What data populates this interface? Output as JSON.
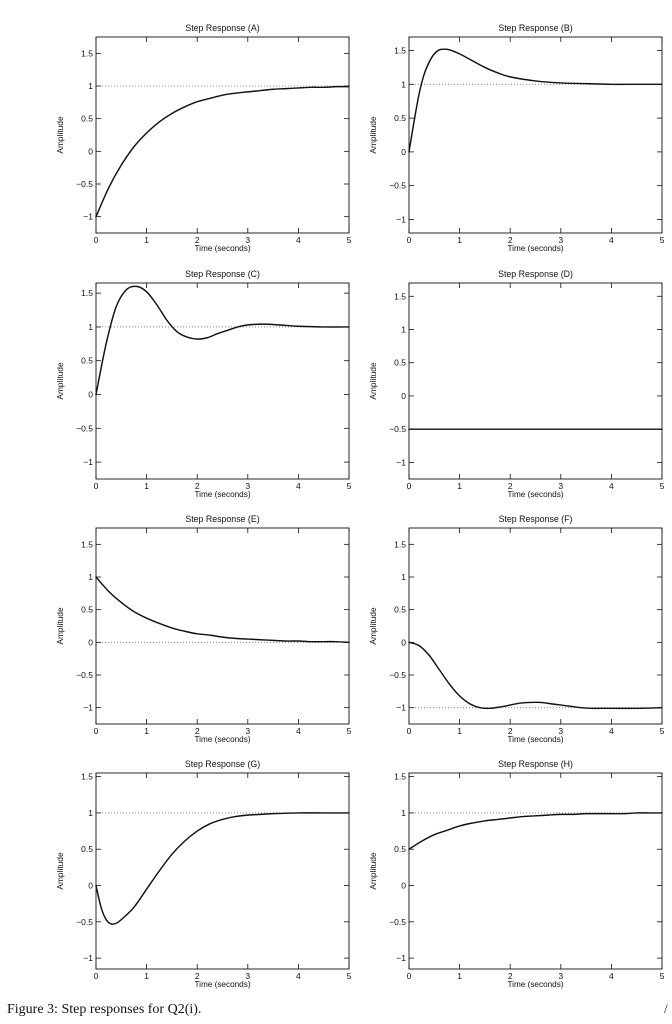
{
  "caption": "Figure 3: Step responses for Q2(i).",
  "edge_mark": "/",
  "chart_data": [
    {
      "type": "line",
      "title": "Step Response (A)",
      "xlabel": "Time (seconds)",
      "ylabel": "Amplitude",
      "xlim": [
        0,
        5
      ],
      "ylim": [
        -1.25,
        1.75
      ],
      "xticks": [
        0,
        1,
        2,
        3,
        4,
        5
      ],
      "xtick_labels": [
        "0",
        "1",
        "2",
        "3",
        "4",
        "5"
      ],
      "yticks": [
        -1,
        -0.5,
        0,
        0.5,
        1,
        1.5
      ],
      "ytick_labels": [
        "−1",
        "−0.5",
        "0",
        "0.5",
        "1",
        "1.5"
      ],
      "reference_line": 1,
      "series": [
        {
          "x": [
            0,
            0.25,
            0.5,
            0.75,
            1,
            1.25,
            1.5,
            1.75,
            2,
            2.25,
            2.5,
            2.75,
            3,
            3.25,
            3.5,
            3.75,
            4,
            4.25,
            4.5,
            4.75,
            5
          ],
          "y": [
            -1,
            -0.56,
            -0.21,
            0.07,
            0.28,
            0.45,
            0.58,
            0.68,
            0.76,
            0.81,
            0.86,
            0.89,
            0.91,
            0.93,
            0.95,
            0.96,
            0.97,
            0.98,
            0.98,
            0.99,
            0.99
          ]
        }
      ]
    },
    {
      "type": "line",
      "title": "Step Response (B)",
      "xlabel": "Time (seconds)",
      "ylabel": "Amplitude",
      "xlim": [
        0,
        5
      ],
      "ylim": [
        -1.2,
        1.7
      ],
      "xticks": [
        0,
        1,
        2,
        3,
        4,
        5
      ],
      "xtick_labels": [
        "0",
        "1",
        "2",
        "3",
        "4",
        "5"
      ],
      "yticks": [
        -1,
        -0.5,
        0,
        0.5,
        1,
        1.5
      ],
      "ytick_labels": [
        "−1",
        "−0.5",
        "0",
        "0.5",
        "1",
        "1.5"
      ],
      "reference_line": 1,
      "series": [
        {
          "x": [
            0,
            0.1,
            0.2,
            0.3,
            0.4,
            0.5,
            0.6,
            0.7,
            0.8,
            1,
            1.25,
            1.5,
            1.75,
            2,
            2.5,
            3,
            3.5,
            4,
            4.5,
            5
          ],
          "y": [
            0,
            0.45,
            0.86,
            1.15,
            1.33,
            1.45,
            1.51,
            1.52,
            1.51,
            1.45,
            1.35,
            1.25,
            1.17,
            1.11,
            1.05,
            1.02,
            1.01,
            1,
            1,
            1
          ]
        }
      ]
    },
    {
      "type": "line",
      "title": "Step Response (C)",
      "xlabel": "Time (seconds)",
      "ylabel": "Amplitude",
      "xlim": [
        0,
        5
      ],
      "ylim": [
        -1.25,
        1.65
      ],
      "xticks": [
        0,
        1,
        2,
        3,
        4,
        5
      ],
      "xtick_labels": [
        "0",
        "1",
        "2",
        "3",
        "4",
        "5"
      ],
      "yticks": [
        -1,
        -0.5,
        0,
        0.5,
        1,
        1.5
      ],
      "ytick_labels": [
        "−1",
        "−0.5",
        "0",
        "0.5",
        "1",
        "1.5"
      ],
      "reference_line": 1,
      "series": [
        {
          "x": [
            0,
            0.2,
            0.4,
            0.6,
            0.8,
            1,
            1.2,
            1.4,
            1.6,
            1.8,
            2,
            2.2,
            2.4,
            2.6,
            2.8,
            3,
            3.2,
            3.4,
            3.6,
            3.8,
            4,
            4.5,
            5
          ],
          "y": [
            0,
            0.75,
            1.3,
            1.55,
            1.6,
            1.52,
            1.33,
            1.1,
            0.93,
            0.85,
            0.82,
            0.84,
            0.9,
            0.95,
            1,
            1.03,
            1.04,
            1.04,
            1.03,
            1.02,
            1.01,
            1,
            1
          ]
        }
      ]
    },
    {
      "type": "line",
      "title": "Step Response (D)",
      "xlabel": "Time (seconds)",
      "ylabel": "Amplitude",
      "xlim": [
        0,
        5
      ],
      "ylim": [
        -1.25,
        1.7
      ],
      "xticks": [
        0,
        1,
        2,
        3,
        4,
        5
      ],
      "xtick_labels": [
        "0",
        "1",
        "2",
        "3",
        "4",
        "5"
      ],
      "yticks": [
        -1,
        -0.5,
        0,
        0.5,
        1,
        1.5
      ],
      "ytick_labels": [
        "−1",
        "−0.5",
        "0",
        "0.5",
        "1",
        "1.5"
      ],
      "series": [
        {
          "x": [
            0,
            5
          ],
          "y": [
            -0.5,
            -0.5
          ]
        }
      ]
    },
    {
      "type": "line",
      "title": "Step Response (E)",
      "xlabel": "Time (seconds)",
      "ylabel": "Amplitude",
      "xlim": [
        0,
        5
      ],
      "ylim": [
        -1.25,
        1.75
      ],
      "xticks": [
        0,
        1,
        2,
        3,
        4,
        5
      ],
      "xtick_labels": [
        "0",
        "1",
        "2",
        "3",
        "4",
        "5"
      ],
      "yticks": [
        -1,
        -0.5,
        0,
        0.5,
        1,
        1.5
      ],
      "ytick_labels": [
        "−1",
        "−0.5",
        "0",
        "0.5",
        "1",
        "1.5"
      ],
      "reference_line": 0,
      "series": [
        {
          "x": [
            0,
            0.25,
            0.5,
            0.75,
            1,
            1.25,
            1.5,
            1.75,
            2,
            2.25,
            2.5,
            2.75,
            3,
            3.25,
            3.5,
            3.75,
            4,
            4.25,
            4.5,
            4.75,
            5
          ],
          "y": [
            1,
            0.78,
            0.61,
            0.47,
            0.37,
            0.29,
            0.22,
            0.17,
            0.13,
            0.11,
            0.08,
            0.06,
            0.05,
            0.04,
            0.03,
            0.02,
            0.02,
            0.01,
            0.01,
            0.01,
            0
          ]
        }
      ]
    },
    {
      "type": "line",
      "title": "Step Response (F)",
      "xlabel": "Time (seconds)",
      "ylabel": "Amplitude",
      "xlim": [
        0,
        5
      ],
      "ylim": [
        -1.25,
        1.75
      ],
      "xticks": [
        0,
        1,
        2,
        3,
        4,
        5
      ],
      "xtick_labels": [
        "0",
        "1",
        "2",
        "3",
        "4",
        "5"
      ],
      "yticks": [
        -1,
        -0.5,
        0,
        0.5,
        1,
        1.5
      ],
      "ytick_labels": [
        "−1",
        "−0.5",
        "0",
        "0.5",
        "1",
        "1.5"
      ],
      "reference_line": -1,
      "series": [
        {
          "x": [
            0,
            0.2,
            0.4,
            0.6,
            0.8,
            1,
            1.2,
            1.4,
            1.6,
            1.8,
            2,
            2.2,
            2.4,
            2.6,
            2.8,
            3,
            3.2,
            3.4,
            3.6,
            3.8,
            4,
            4.5,
            5
          ],
          "y": [
            0,
            -0.05,
            -0.2,
            -0.42,
            -0.64,
            -0.82,
            -0.94,
            -1,
            -1.01,
            -0.99,
            -0.96,
            -0.93,
            -0.92,
            -0.92,
            -0.94,
            -0.96,
            -0.98,
            -1,
            -1.01,
            -1.01,
            -1.01,
            -1.01,
            -1
          ]
        }
      ]
    },
    {
      "type": "line",
      "title": "Step Response (G)",
      "xlabel": "Time (seconds)",
      "ylabel": "Amplitude",
      "xlim": [
        0,
        5
      ],
      "ylim": [
        -1.15,
        1.55
      ],
      "xticks": [
        0,
        1,
        2,
        3,
        4,
        5
      ],
      "xtick_labels": [
        "0",
        "1",
        "2",
        "3",
        "4",
        "5"
      ],
      "yticks": [
        -1,
        -0.5,
        0,
        0.5,
        1,
        1.5
      ],
      "ytick_labels": [
        "−1",
        "−0.5",
        "0",
        "0.5",
        "1",
        "1.5"
      ],
      "reference_line": 1,
      "series": [
        {
          "x": [
            0,
            0.1,
            0.2,
            0.3,
            0.4,
            0.5,
            0.75,
            1,
            1.25,
            1.5,
            1.75,
            2,
            2.25,
            2.5,
            2.75,
            3,
            3.25,
            3.5,
            4,
            4.5,
            5
          ],
          "y": [
            0,
            -0.3,
            -0.47,
            -0.53,
            -0.52,
            -0.47,
            -0.3,
            -0.05,
            0.2,
            0.43,
            0.61,
            0.75,
            0.85,
            0.91,
            0.95,
            0.97,
            0.98,
            0.99,
            1,
            1,
            1
          ]
        }
      ]
    },
    {
      "type": "line",
      "title": "Step Response (H)",
      "xlabel": "Time (seconds)",
      "ylabel": "Amplitude",
      "xlim": [
        0,
        5
      ],
      "ylim": [
        -1.15,
        1.55
      ],
      "xticks": [
        0,
        1,
        2,
        3,
        4,
        5
      ],
      "xtick_labels": [
        "0",
        "1",
        "2",
        "3",
        "4",
        "5"
      ],
      "yticks": [
        -1,
        -0.5,
        0,
        0.5,
        1,
        1.5
      ],
      "ytick_labels": [
        "−1",
        "−0.5",
        "0",
        "0.5",
        "1",
        "1.5"
      ],
      "reference_line": 1,
      "series": [
        {
          "x": [
            0,
            0.25,
            0.5,
            0.75,
            1,
            1.25,
            1.5,
            1.75,
            2,
            2.25,
            2.5,
            2.75,
            3,
            3.25,
            3.5,
            3.75,
            4,
            4.25,
            4.5,
            4.75,
            5
          ],
          "y": [
            0.5,
            0.61,
            0.7,
            0.76,
            0.82,
            0.86,
            0.89,
            0.91,
            0.93,
            0.95,
            0.96,
            0.97,
            0.98,
            0.98,
            0.99,
            0.99,
            0.99,
            0.99,
            1,
            1,
            1
          ]
        }
      ]
    }
  ]
}
